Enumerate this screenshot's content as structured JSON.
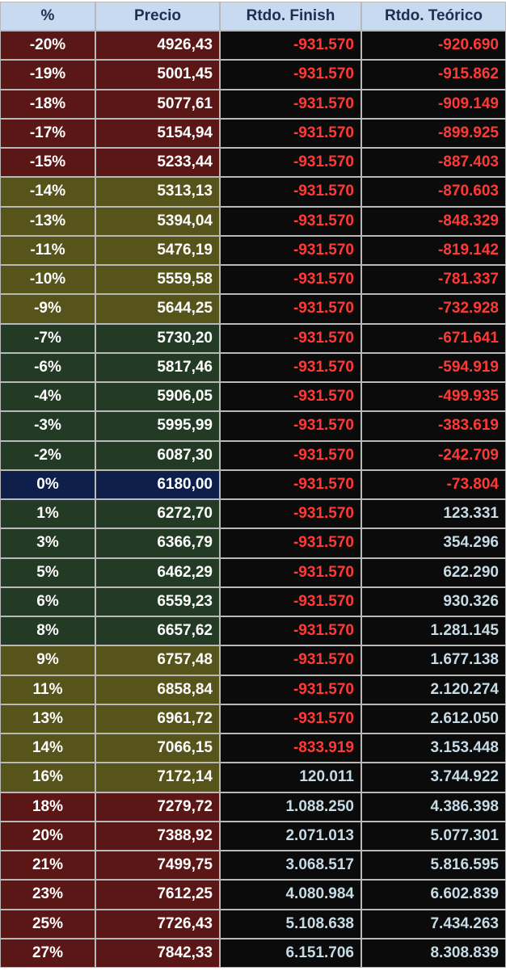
{
  "table": {
    "header": [
      "%",
      "Precio",
      "Rtdo. Finish",
      "Rtdo. Teórico"
    ],
    "rows": [
      {
        "color": "#5b1616",
        "cells": [
          "-20%",
          "4926,43",
          "-931.570",
          "-920.690"
        ]
      },
      {
        "color": "#5b1616",
        "cells": [
          "-19%",
          "5001,45",
          "-931.570",
          "-915.862"
        ]
      },
      {
        "color": "#5b1616",
        "cells": [
          "-18%",
          "5077,61",
          "-931.570",
          "-909.149"
        ]
      },
      {
        "color": "#5b1616",
        "cells": [
          "-17%",
          "5154,94",
          "-931.570",
          "-899.925"
        ]
      },
      {
        "color": "#5b1616",
        "cells": [
          "-15%",
          "5233,44",
          "-931.570",
          "-887.403"
        ]
      },
      {
        "color": "#56531b",
        "cells": [
          "-14%",
          "5313,13",
          "-931.570",
          "-870.603"
        ]
      },
      {
        "color": "#56531b",
        "cells": [
          "-13%",
          "5394,04",
          "-931.570",
          "-848.329"
        ]
      },
      {
        "color": "#56531b",
        "cells": [
          "-11%",
          "5476,19",
          "-931.570",
          "-819.142"
        ]
      },
      {
        "color": "#56531b",
        "cells": [
          "-10%",
          "5559,58",
          "-931.570",
          "-781.337"
        ]
      },
      {
        "color": "#56531b",
        "cells": [
          "-9%",
          "5644,25",
          "-931.570",
          "-732.928"
        ]
      },
      {
        "color": "#233a24",
        "cells": [
          "-7%",
          "5730,20",
          "-931.570",
          "-671.641"
        ]
      },
      {
        "color": "#233a24",
        "cells": [
          "-6%",
          "5817,46",
          "-931.570",
          "-594.919"
        ]
      },
      {
        "color": "#233a24",
        "cells": [
          "-4%",
          "5906,05",
          "-931.570",
          "-499.935"
        ]
      },
      {
        "color": "#233a24",
        "cells": [
          "-3%",
          "5995,99",
          "-931.570",
          "-383.619"
        ]
      },
      {
        "color": "#233a24",
        "cells": [
          "-2%",
          "6087,30",
          "-931.570",
          "-242.709"
        ]
      },
      {
        "color": "#0d1f4a",
        "cells": [
          "0%",
          "6180,00",
          "-931.570",
          "-73.804"
        ]
      },
      {
        "color": "#233a24",
        "cells": [
          "1%",
          "6272,70",
          "-931.570",
          "123.331"
        ]
      },
      {
        "color": "#233a24",
        "cells": [
          "3%",
          "6366,79",
          "-931.570",
          "354.296"
        ]
      },
      {
        "color": "#233a24",
        "cells": [
          "5%",
          "6462,29",
          "-931.570",
          "622.290"
        ]
      },
      {
        "color": "#233a24",
        "cells": [
          "6%",
          "6559,23",
          "-931.570",
          "930.326"
        ]
      },
      {
        "color": "#233a24",
        "cells": [
          "8%",
          "6657,62",
          "-931.570",
          "1.281.145"
        ]
      },
      {
        "color": "#56531b",
        "cells": [
          "9%",
          "6757,48",
          "-931.570",
          "1.677.138"
        ]
      },
      {
        "color": "#56531b",
        "cells": [
          "11%",
          "6858,84",
          "-931.570",
          "2.120.274"
        ]
      },
      {
        "color": "#56531b",
        "cells": [
          "13%",
          "6961,72",
          "-931.570",
          "2.612.050"
        ]
      },
      {
        "color": "#56531b",
        "cells": [
          "14%",
          "7066,15",
          "-833.919",
          "3.153.448"
        ]
      },
      {
        "color": "#56531b",
        "cells": [
          "16%",
          "7172,14",
          "120.011",
          "3.744.922"
        ]
      },
      {
        "color": "#5b1616",
        "cells": [
          "18%",
          "7279,72",
          "1.088.250",
          "4.386.398"
        ]
      },
      {
        "color": "#5b1616",
        "cells": [
          "20%",
          "7388,92",
          "2.071.013",
          "5.077.301"
        ]
      },
      {
        "color": "#5b1616",
        "cells": [
          "21%",
          "7499,75",
          "3.068.517",
          "5.816.595"
        ]
      },
      {
        "color": "#5b1616",
        "cells": [
          "23%",
          "7612,25",
          "4.080.984",
          "6.602.839"
        ]
      },
      {
        "color": "#5b1616",
        "cells": [
          "25%",
          "7726,43",
          "5.108.638",
          "7.434.263"
        ]
      },
      {
        "color": "#5b1616",
        "cells": [
          "27%",
          "7842,33",
          "6.151.706",
          "8.308.839"
        ]
      }
    ]
  }
}
